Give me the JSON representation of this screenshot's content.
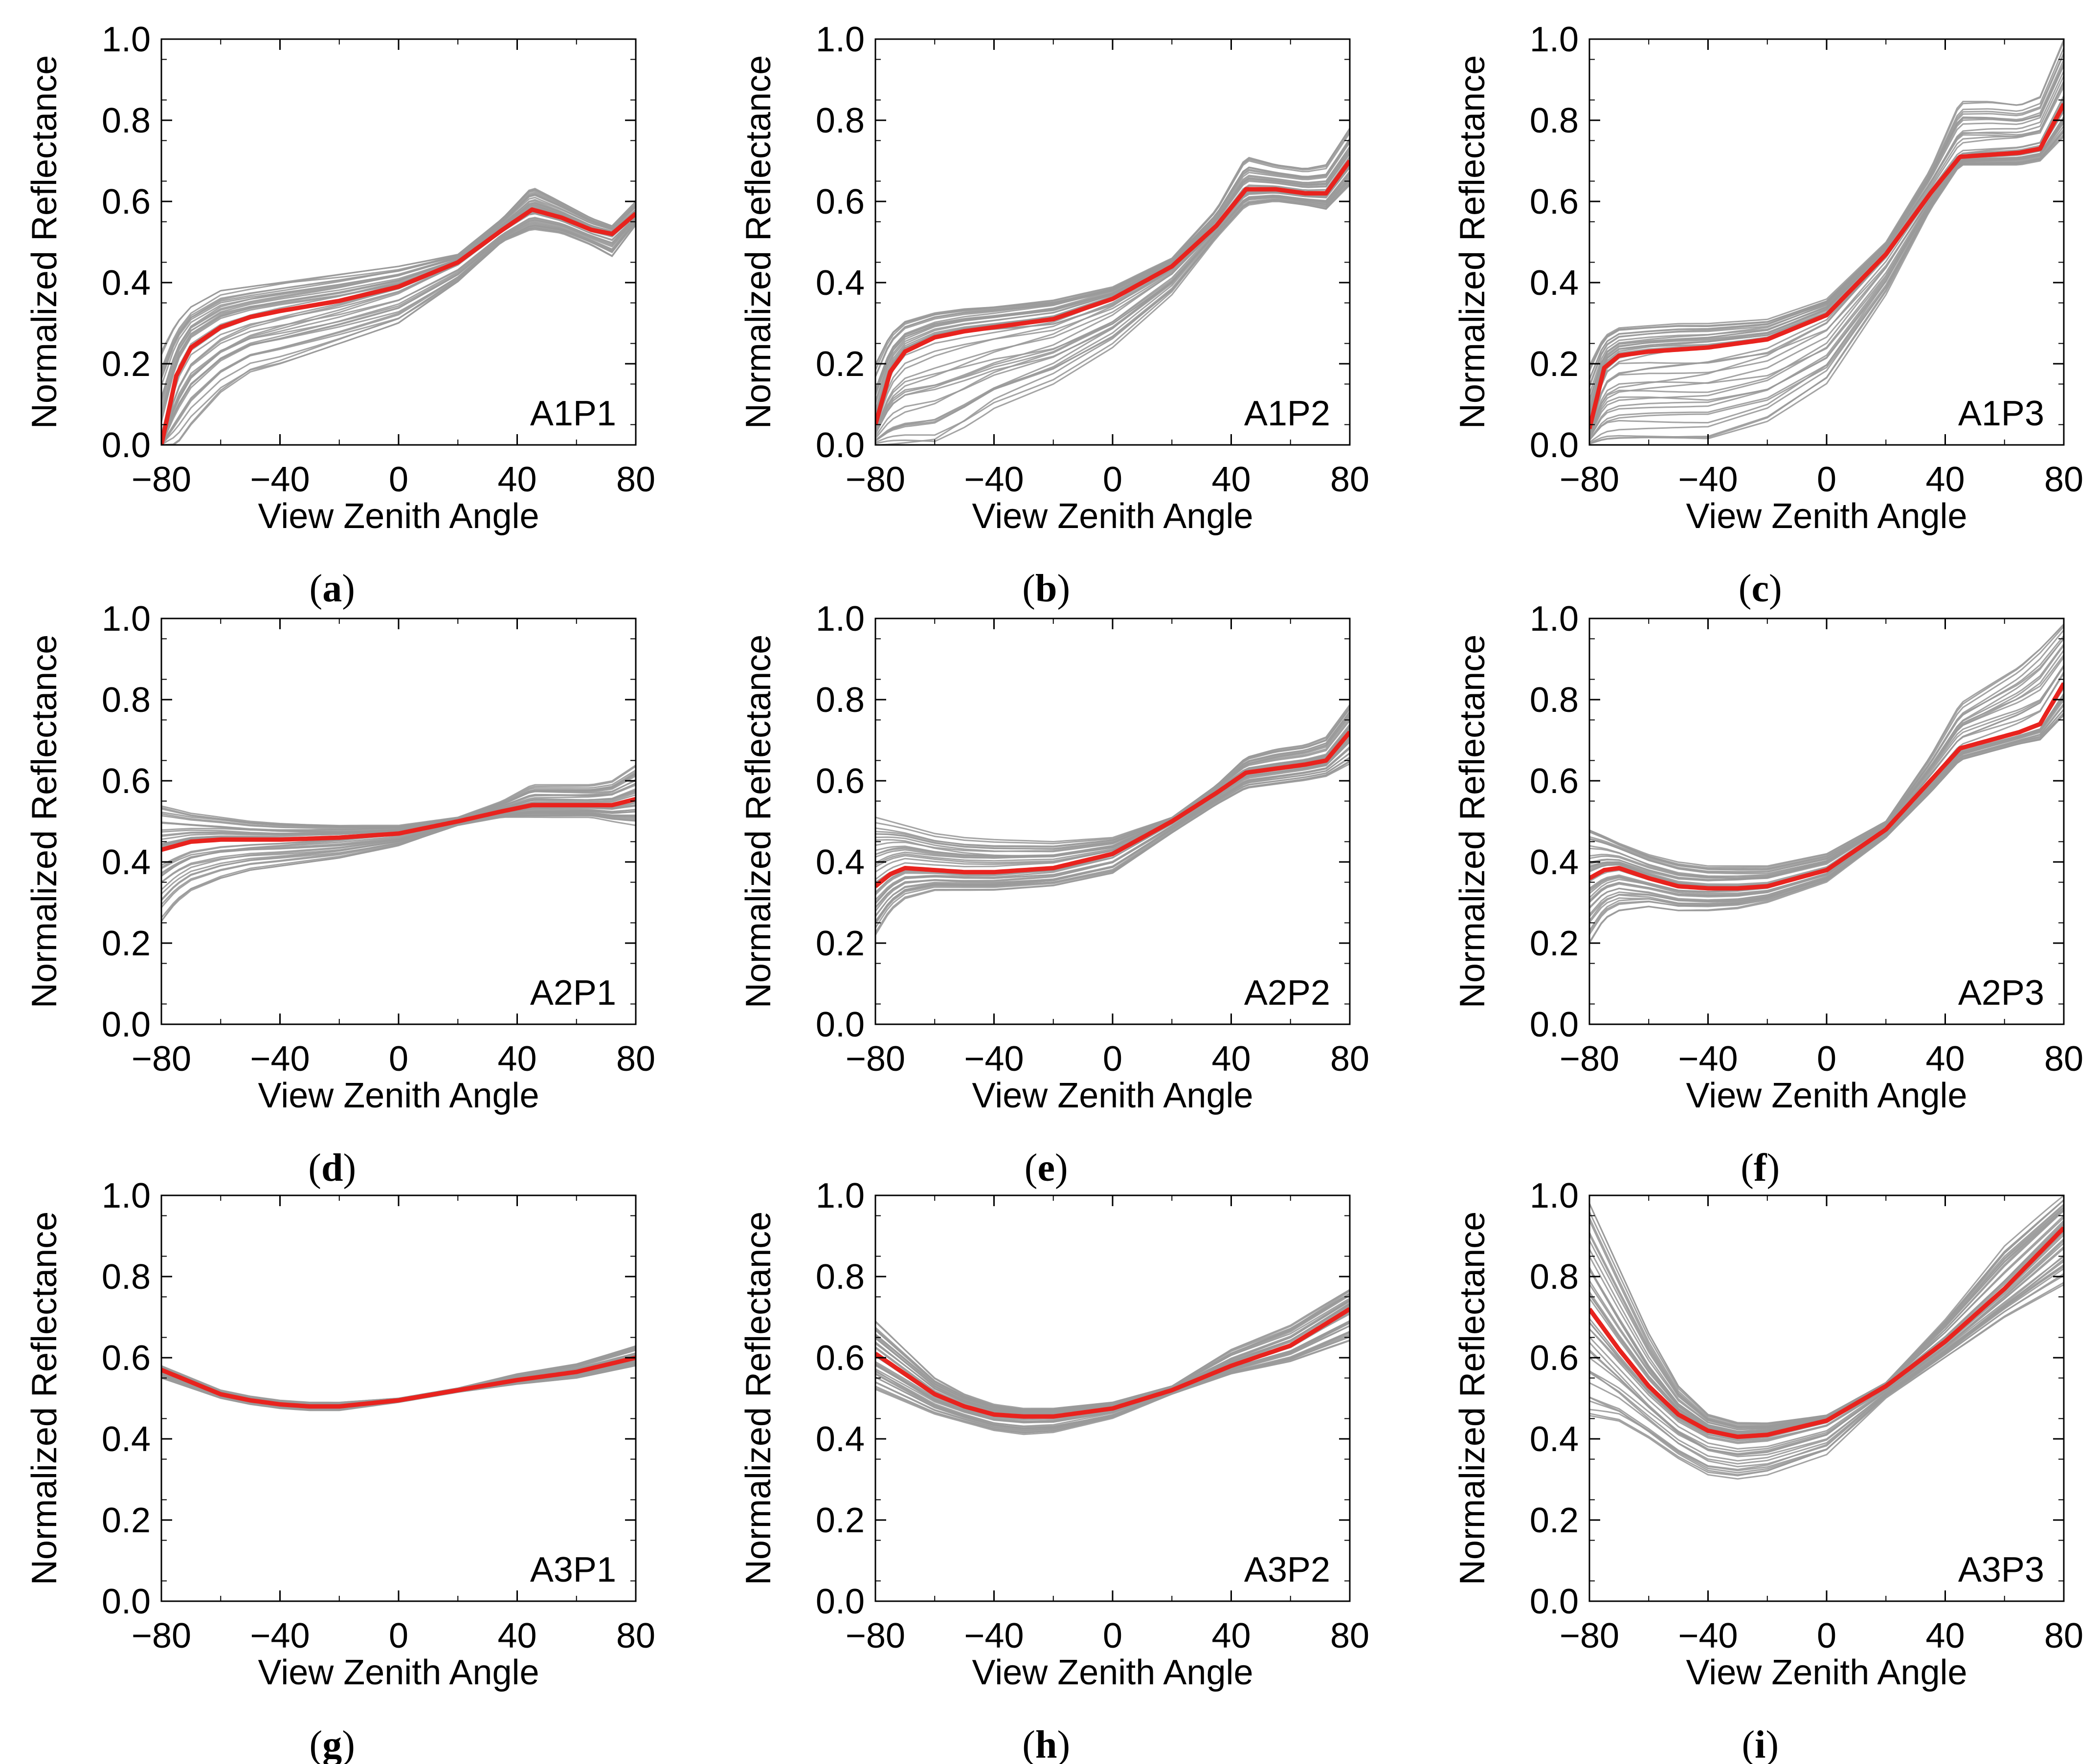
{
  "figure": {
    "colors": {
      "ensemble": "#9a9a9a",
      "mean": "#e8231e",
      "axis": "#000000"
    }
  },
  "chart_data": [
    {
      "type": "line",
      "tag": "A1P1",
      "caption": "a",
      "xlabel": "View Zenith Angle",
      "ylabel": "Normalized Reflectance",
      "xlim": [
        -80,
        80
      ],
      "ylim": [
        0.0,
        1.0
      ],
      "xticks": [
        "-80",
        "-40",
        "0",
        "40",
        "80"
      ],
      "yticks": [
        "0.0",
        "0.2",
        "0.4",
        "0.6",
        "0.8",
        "1.0"
      ],
      "mean": {
        "x": [
          -80,
          -75,
          -70,
          -60,
          -50,
          -40,
          -20,
          0,
          20,
          35,
          45,
          55,
          65,
          72,
          80
        ],
        "y": [
          0.0,
          0.17,
          0.24,
          0.29,
          0.315,
          0.33,
          0.355,
          0.39,
          0.45,
          0.53,
          0.58,
          0.56,
          0.53,
          0.52,
          0.57
        ]
      },
      "ensemble": {
        "count": 40,
        "upper": [
          0.23,
          0.3,
          0.34,
          0.38,
          0.39,
          0.4,
          0.42,
          0.44,
          0.47,
          0.56,
          0.64,
          0.6,
          0.56,
          0.54,
          0.6
        ],
        "lower": [
          0.0,
          0.0,
          0.05,
          0.13,
          0.18,
          0.2,
          0.25,
          0.3,
          0.4,
          0.5,
          0.53,
          0.52,
          0.49,
          0.46,
          0.54
        ]
      }
    },
    {
      "type": "line",
      "tag": "A1P2",
      "caption": "b",
      "xlabel": "View Zenith Angle",
      "ylabel": "Normalized Reflectance",
      "xlim": [
        -80,
        80
      ],
      "ylim": [
        0.0,
        1.0
      ],
      "xticks": [
        "-80",
        "-40",
        "0",
        "40",
        "80"
      ],
      "yticks": [
        "0.0",
        "0.2",
        "0.4",
        "0.6",
        "0.8",
        "1.0"
      ],
      "mean": {
        "x": [
          -80,
          -75,
          -70,
          -60,
          -50,
          -40,
          -20,
          0,
          20,
          35,
          45,
          55,
          65,
          72,
          80
        ],
        "y": [
          0.05,
          0.18,
          0.23,
          0.265,
          0.28,
          0.29,
          0.31,
          0.36,
          0.44,
          0.54,
          0.63,
          0.63,
          0.62,
          0.62,
          0.7
        ]
      },
      "ensemble": {
        "count": 40,
        "upper": [
          0.21,
          0.28,
          0.31,
          0.33,
          0.34,
          0.345,
          0.36,
          0.39,
          0.46,
          0.58,
          0.71,
          0.69,
          0.68,
          0.69,
          0.78
        ],
        "lower": [
          0.0,
          0.0,
          0.0,
          0.0,
          0.04,
          0.09,
          0.15,
          0.24,
          0.37,
          0.51,
          0.59,
          0.6,
          0.59,
          0.58,
          0.64
        ]
      }
    },
    {
      "type": "line",
      "tag": "A1P3",
      "caption": "c",
      "xlabel": "View Zenith Angle",
      "ylabel": "Normalized Reflectance",
      "xlim": [
        -80,
        80
      ],
      "ylim": [
        0.0,
        1.0
      ],
      "xticks": [
        "-80",
        "-40",
        "0",
        "40",
        "80"
      ],
      "yticks": [
        "0.0",
        "0.2",
        "0.4",
        "0.6",
        "0.8",
        "1.0"
      ],
      "mean": {
        "x": [
          -80,
          -75,
          -70,
          -60,
          -50,
          -40,
          -20,
          0,
          20,
          35,
          45,
          55,
          65,
          72,
          80
        ],
        "y": [
          0.04,
          0.19,
          0.22,
          0.23,
          0.235,
          0.24,
          0.26,
          0.32,
          0.47,
          0.62,
          0.71,
          0.715,
          0.72,
          0.73,
          0.84
        ]
      },
      "ensemble": {
        "count": 40,
        "upper": [
          0.2,
          0.27,
          0.29,
          0.295,
          0.3,
          0.3,
          0.31,
          0.36,
          0.5,
          0.68,
          0.85,
          0.85,
          0.84,
          0.86,
          1.0
        ],
        "lower": [
          0.0,
          0.0,
          0.0,
          0.0,
          0.0,
          0.0,
          0.05,
          0.15,
          0.37,
          0.58,
          0.69,
          0.69,
          0.69,
          0.7,
          0.76
        ]
      }
    },
    {
      "type": "line",
      "tag": "A2P1",
      "caption": "d",
      "xlabel": "View Zenith Angle",
      "ylabel": "Normalized Reflectance",
      "xlim": [
        -80,
        80
      ],
      "ylim": [
        0.0,
        1.0
      ],
      "xticks": [
        "-80",
        "-40",
        "0",
        "40",
        "80"
      ],
      "yticks": [
        "0.0",
        "0.2",
        "0.4",
        "0.6",
        "0.8",
        "1.0"
      ],
      "mean": {
        "x": [
          -80,
          -75,
          -70,
          -60,
          -50,
          -40,
          -20,
          0,
          20,
          35,
          45,
          55,
          65,
          72,
          80
        ],
        "y": [
          0.43,
          0.44,
          0.45,
          0.455,
          0.455,
          0.455,
          0.46,
          0.47,
          0.5,
          0.525,
          0.54,
          0.54,
          0.54,
          0.54,
          0.555
        ]
      },
      "ensemble": {
        "count": 40,
        "upper": [
          0.54,
          0.53,
          0.52,
          0.51,
          0.5,
          0.495,
          0.49,
          0.49,
          0.51,
          0.55,
          0.59,
          0.59,
          0.59,
          0.6,
          0.64
        ],
        "lower": [
          0.25,
          0.3,
          0.33,
          0.36,
          0.38,
          0.39,
          0.41,
          0.44,
          0.49,
          0.51,
          0.51,
          0.51,
          0.51,
          0.5,
          0.49
        ]
      }
    },
    {
      "type": "line",
      "tag": "A2P2",
      "caption": "e",
      "xlabel": "View Zenith Angle",
      "ylabel": "Normalized Reflectance",
      "xlim": [
        -80,
        80
      ],
      "ylim": [
        0.0,
        1.0
      ],
      "xticks": [
        "-80",
        "-40",
        "0",
        "40",
        "80"
      ],
      "yticks": [
        "0.0",
        "0.2",
        "0.4",
        "0.6",
        "0.8",
        "1.0"
      ],
      "mean": {
        "x": [
          -80,
          -75,
          -70,
          -60,
          -50,
          -40,
          -20,
          0,
          20,
          35,
          45,
          55,
          65,
          72,
          80
        ],
        "y": [
          0.34,
          0.37,
          0.385,
          0.38,
          0.375,
          0.375,
          0.385,
          0.42,
          0.5,
          0.57,
          0.62,
          0.63,
          0.64,
          0.65,
          0.72
        ]
      },
      "ensemble": {
        "count": 40,
        "upper": [
          0.51,
          0.5,
          0.49,
          0.47,
          0.46,
          0.455,
          0.45,
          0.46,
          0.51,
          0.59,
          0.66,
          0.68,
          0.69,
          0.71,
          0.79
        ],
        "lower": [
          0.22,
          0.28,
          0.31,
          0.33,
          0.33,
          0.33,
          0.34,
          0.37,
          0.47,
          0.54,
          0.58,
          0.59,
          0.6,
          0.61,
          0.64
        ]
      }
    },
    {
      "type": "line",
      "tag": "A2P3",
      "caption": "f",
      "xlabel": "View Zenith Angle",
      "ylabel": "Normalized Reflectance",
      "xlim": [
        -80,
        80
      ],
      "ylim": [
        0.0,
        1.0
      ],
      "xticks": [
        "-80",
        "-40",
        "0",
        "40",
        "80"
      ],
      "yticks": [
        "0.0",
        "0.2",
        "0.4",
        "0.6",
        "0.8",
        "1.0"
      ],
      "mean": {
        "x": [
          -80,
          -75,
          -70,
          -60,
          -50,
          -40,
          -30,
          -20,
          0,
          20,
          35,
          45,
          55,
          65,
          72,
          80
        ],
        "y": [
          0.36,
          0.38,
          0.385,
          0.36,
          0.34,
          0.335,
          0.335,
          0.34,
          0.38,
          0.48,
          0.6,
          0.68,
          0.7,
          0.72,
          0.74,
          0.84
        ]
      },
      "ensemble": {
        "count": 40,
        "upper": [
          0.49,
          0.47,
          0.45,
          0.42,
          0.4,
          0.39,
          0.39,
          0.39,
          0.42,
          0.5,
          0.66,
          0.79,
          0.84,
          0.89,
          0.94,
          1.0
        ],
        "lower": [
          0.2,
          0.26,
          0.28,
          0.29,
          0.28,
          0.28,
          0.285,
          0.3,
          0.35,
          0.46,
          0.57,
          0.65,
          0.67,
          0.69,
          0.7,
          0.76
        ]
      }
    },
    {
      "type": "line",
      "tag": "A3P1",
      "caption": "g",
      "xlabel": "View Zenith Angle",
      "ylabel": "Normalized Reflectance",
      "xlim": [
        -80,
        80
      ],
      "ylim": [
        0.0,
        1.0
      ],
      "xticks": [
        "-80",
        "-40",
        "0",
        "40",
        "80"
      ],
      "yticks": [
        "0.0",
        "0.2",
        "0.4",
        "0.6",
        "0.8",
        "1.0"
      ],
      "mean": {
        "x": [
          -80,
          -70,
          -60,
          -50,
          -40,
          -30,
          -20,
          0,
          20,
          40,
          60,
          80
        ],
        "y": [
          0.57,
          0.54,
          0.51,
          0.495,
          0.485,
          0.48,
          0.48,
          0.495,
          0.52,
          0.545,
          0.565,
          0.6
        ]
      },
      "ensemble": {
        "count": 40,
        "upper": [
          0.58,
          0.55,
          0.52,
          0.505,
          0.495,
          0.49,
          0.49,
          0.5,
          0.525,
          0.56,
          0.585,
          0.63
        ],
        "lower": [
          0.55,
          0.525,
          0.5,
          0.485,
          0.475,
          0.47,
          0.47,
          0.49,
          0.515,
          0.535,
          0.55,
          0.58
        ]
      }
    },
    {
      "type": "line",
      "tag": "A3P2",
      "caption": "h",
      "xlabel": "View Zenith Angle",
      "ylabel": "Normalized Reflectance",
      "xlim": [
        -80,
        80
      ],
      "ylim": [
        0.0,
        1.0
      ],
      "xticks": [
        "-80",
        "-40",
        "0",
        "40",
        "80"
      ],
      "yticks": [
        "0.0",
        "0.2",
        "0.4",
        "0.6",
        "0.8",
        "1.0"
      ],
      "mean": {
        "x": [
          -80,
          -70,
          -60,
          -50,
          -40,
          -30,
          -20,
          0,
          20,
          40,
          60,
          80
        ],
        "y": [
          0.61,
          0.56,
          0.51,
          0.48,
          0.46,
          0.455,
          0.455,
          0.475,
          0.52,
          0.58,
          0.63,
          0.72
        ]
      },
      "ensemble": {
        "count": 40,
        "upper": [
          0.69,
          0.62,
          0.55,
          0.51,
          0.485,
          0.475,
          0.475,
          0.49,
          0.53,
          0.62,
          0.68,
          0.77
        ],
        "lower": [
          0.52,
          0.49,
          0.46,
          0.44,
          0.42,
          0.41,
          0.415,
          0.45,
          0.51,
          0.56,
          0.59,
          0.64
        ]
      }
    },
    {
      "type": "line",
      "tag": "A3P3",
      "caption": "i",
      "xlabel": "View Zenith Angle",
      "ylabel": "Normalized Reflectance",
      "xlim": [
        -80,
        80
      ],
      "ylim": [
        0.0,
        1.0
      ],
      "xticks": [
        "-80",
        "-40",
        "0",
        "40",
        "80"
      ],
      "yticks": [
        "0.0",
        "0.2",
        "0.4",
        "0.6",
        "0.8",
        "1.0"
      ],
      "mean": {
        "x": [
          -80,
          -70,
          -60,
          -50,
          -40,
          -30,
          -20,
          0,
          20,
          40,
          60,
          80
        ],
        "y": [
          0.72,
          0.62,
          0.53,
          0.46,
          0.42,
          0.405,
          0.41,
          0.445,
          0.53,
          0.64,
          0.77,
          0.92
        ]
      },
      "ensemble": {
        "count": 40,
        "upper": [
          0.98,
          0.82,
          0.66,
          0.53,
          0.46,
          0.44,
          0.44,
          0.46,
          0.54,
          0.7,
          0.88,
          1.0
        ],
        "lower": [
          0.45,
          0.44,
          0.4,
          0.35,
          0.31,
          0.3,
          0.31,
          0.36,
          0.5,
          0.6,
          0.7,
          0.78
        ]
      }
    }
  ]
}
